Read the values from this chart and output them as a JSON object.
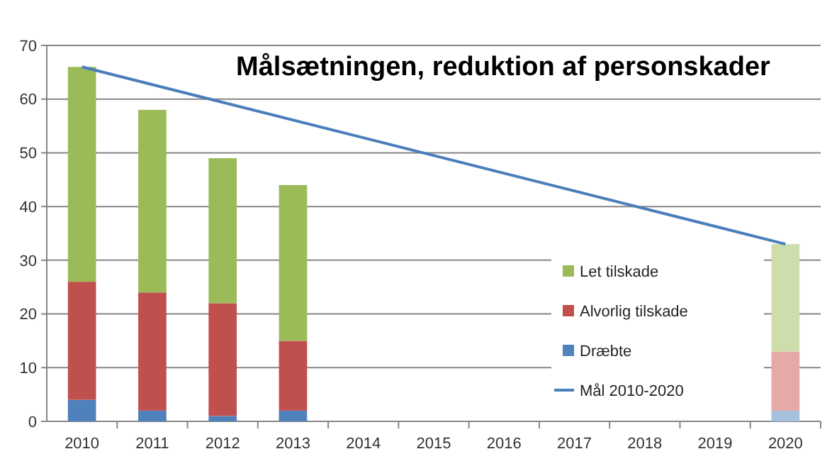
{
  "chart_data": {
    "type": "bar",
    "title": "Målsætningen, reduktion af personskader",
    "categories": [
      "2010",
      "2011",
      "2012",
      "2013",
      "2014",
      "2015",
      "2016",
      "2017",
      "2018",
      "2019",
      "2020"
    ],
    "stacked": true,
    "series": [
      {
        "name": "Dræbte",
        "color": "#4f81bd",
        "colors": [
          "#4f81bd",
          "#4f81bd",
          "#4f81bd",
          "#4f81bd",
          null,
          null,
          null,
          null,
          null,
          null,
          "#a7c0de"
        ],
        "values": [
          4,
          2,
          1,
          2,
          null,
          null,
          null,
          null,
          null,
          null,
          2
        ]
      },
      {
        "name": "Alvorlig tilskade",
        "color": "#c0504d",
        "colors": [
          "#c0504d",
          "#c0504d",
          "#c0504d",
          "#c0504d",
          null,
          null,
          null,
          null,
          null,
          null,
          "#e5a9a7"
        ],
        "values": [
          22,
          22,
          21,
          13,
          null,
          null,
          null,
          null,
          null,
          null,
          11
        ]
      },
      {
        "name": "Let tilskade",
        "color": "#9bbb59",
        "colors": [
          "#9bbb59",
          "#9bbb59",
          "#9bbb59",
          "#9bbb59",
          null,
          null,
          null,
          null,
          null,
          null,
          "#cddeac"
        ],
        "values": [
          40,
          34,
          27,
          29,
          null,
          null,
          null,
          null,
          null,
          null,
          20
        ]
      },
      {
        "name": "Mål 2010-2020",
        "type": "line",
        "color": "#4a7ebb",
        "values": [
          66,
          null,
          null,
          null,
          null,
          null,
          null,
          null,
          null,
          null,
          33
        ]
      }
    ],
    "ylim": [
      0,
      70
    ],
    "yticks": [
      0,
      10,
      20,
      30,
      40,
      50,
      60,
      70
    ],
    "grid": "y",
    "legend": "bottom right"
  }
}
